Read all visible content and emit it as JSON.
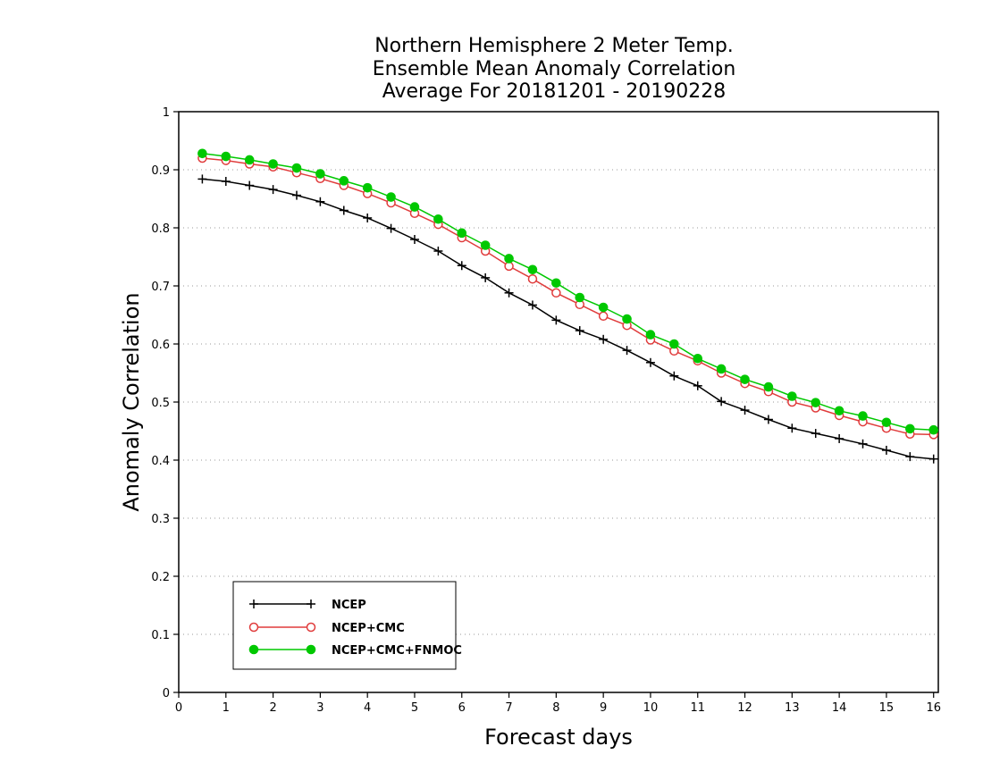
{
  "chart_data": {
    "type": "line",
    "title_lines": [
      "Northern Hemisphere 2 Meter Temp.",
      "Ensemble Mean Anomaly Correlation",
      "Average For 20181201 - 20190228"
    ],
    "xlabel": "Forecast days",
    "ylabel": "Anomaly Correlation",
    "xlim": [
      0,
      16.1
    ],
    "ylim": [
      0,
      1
    ],
    "xticks": [
      0,
      1,
      2,
      3,
      4,
      5,
      6,
      7,
      8,
      9,
      10,
      11,
      12,
      13,
      14,
      15,
      16
    ],
    "yticks": [
      0,
      0.1,
      0.2,
      0.3,
      0.4,
      0.5,
      0.6,
      0.7,
      0.8,
      0.9,
      1
    ],
    "ytick_labels": [
      "0",
      "0.1",
      "0.2",
      "0.3",
      "0.4",
      "0.5",
      "0.6",
      "0.7",
      "0.8",
      "0.9",
      "1"
    ],
    "grid": "horizontal-dotted",
    "legend_position": "bottom-left",
    "x": [
      0.5,
      1,
      1.5,
      2,
      2.5,
      3,
      3.5,
      4,
      4.5,
      5,
      5.5,
      6,
      6.5,
      7,
      7.5,
      8,
      8.5,
      9,
      9.5,
      10,
      10.5,
      11,
      11.5,
      12,
      12.5,
      13,
      13.5,
      14,
      14.5,
      15,
      15.5,
      16
    ],
    "series": [
      {
        "name": "NCEP",
        "color": "#000000",
        "marker": "plus",
        "values": [
          0.884,
          0.88,
          0.873,
          0.866,
          0.856,
          0.845,
          0.83,
          0.817,
          0.799,
          0.78,
          0.76,
          0.735,
          0.714,
          0.688,
          0.667,
          0.641,
          0.623,
          0.608,
          0.589,
          0.568,
          0.545,
          0.528,
          0.501,
          0.486,
          0.47,
          0.455,
          0.446,
          0.437,
          0.428,
          0.417,
          0.406,
          0.402
        ]
      },
      {
        "name": "NCEP+CMC",
        "color": "#e03c3c",
        "marker": "open-circle",
        "values": [
          0.92,
          0.916,
          0.91,
          0.905,
          0.895,
          0.885,
          0.873,
          0.859,
          0.843,
          0.825,
          0.806,
          0.783,
          0.76,
          0.734,
          0.712,
          0.688,
          0.668,
          0.648,
          0.632,
          0.607,
          0.588,
          0.571,
          0.55,
          0.532,
          0.518,
          0.5,
          0.49,
          0.477,
          0.466,
          0.455,
          0.445,
          0.444
        ]
      },
      {
        "name": "NCEP+CMC+FNMOC",
        "color": "#00c800",
        "marker": "filled-circle",
        "values": [
          0.928,
          0.923,
          0.917,
          0.91,
          0.903,
          0.893,
          0.881,
          0.869,
          0.853,
          0.836,
          0.815,
          0.791,
          0.77,
          0.747,
          0.728,
          0.705,
          0.68,
          0.663,
          0.643,
          0.616,
          0.6,
          0.575,
          0.557,
          0.539,
          0.526,
          0.51,
          0.499,
          0.485,
          0.476,
          0.465,
          0.454,
          0.452
        ]
      }
    ]
  }
}
